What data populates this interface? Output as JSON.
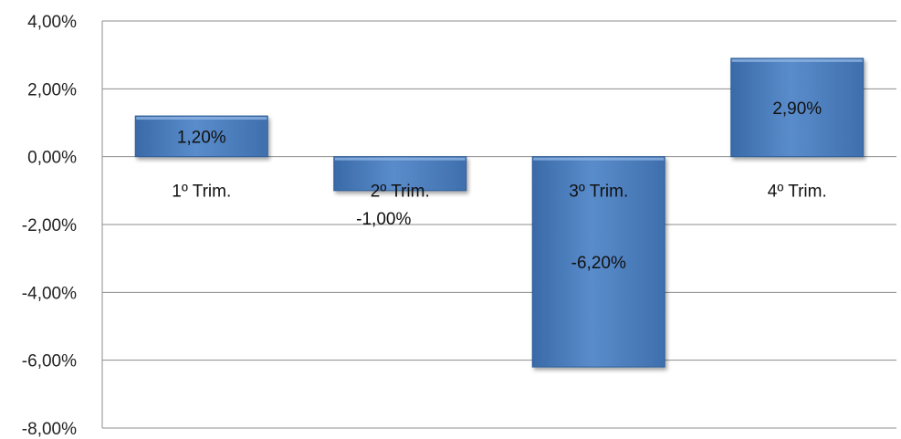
{
  "chart_data": {
    "type": "bar",
    "categories": [
      "1º Trim.",
      "2º Trim.",
      "3º Trim.",
      "4º Trim."
    ],
    "values": [
      1.2,
      -1.0,
      -6.2,
      2.9
    ],
    "data_labels": [
      "1,20%",
      "-1,00%",
      "-6,20%",
      "2,90%"
    ],
    "y_ticks": [
      {
        "value": 4,
        "label": "4,00%"
      },
      {
        "value": 2,
        "label": "2,00%"
      },
      {
        "value": 0,
        "label": "0,00%"
      },
      {
        "value": -2,
        "label": "-2,00%"
      },
      {
        "value": -4,
        "label": "-4,00%"
      },
      {
        "value": -6,
        "label": "-6,00%"
      },
      {
        "value": -8,
        "label": "-8,00%"
      }
    ],
    "ylim": [
      -8,
      4
    ],
    "grid": true,
    "legend": "none",
    "title": "",
    "xlabel": "",
    "ylabel": "",
    "colors": {
      "bar_fill": "#4f81bd",
      "bar_light": "#7ba3d6",
      "bar_dark": "#2c5a92",
      "gridline": "#8c8c8c"
    }
  }
}
